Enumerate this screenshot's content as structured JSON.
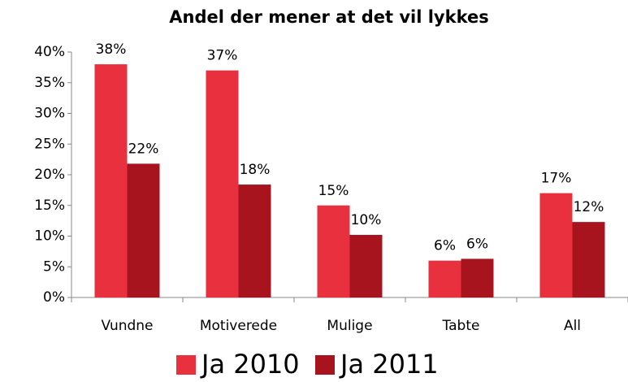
{
  "chart_data": {
    "type": "bar",
    "title": "Andel der mener at det vil lykkes",
    "categories": [
      "Vundne",
      "Motiverede",
      "Mulige",
      "Tabte",
      "All"
    ],
    "series": [
      {
        "name": "Ja 2010",
        "color": "#e8303e",
        "values": [
          38,
          37,
          15,
          6,
          17
        ],
        "value_labels": [
          "38%",
          "37%",
          "15%",
          "6%",
          "17%"
        ]
      },
      {
        "name": "Ja 2011",
        "color": "#a8141e",
        "values": [
          21.8,
          18.4,
          10.2,
          6.3,
          12.3
        ],
        "value_labels": [
          "22%",
          "18%",
          "10%",
          "6%",
          "12%"
        ]
      }
    ],
    "ylim": [
      0,
      40
    ],
    "yticks": [
      {
        "value": 0,
        "label": "0%"
      },
      {
        "value": 5,
        "label": "5%"
      },
      {
        "value": 10,
        "label": "10%"
      },
      {
        "value": 15,
        "label": "15%"
      },
      {
        "value": 20,
        "label": "20%"
      },
      {
        "value": 25,
        "label": "25%"
      },
      {
        "value": 30,
        "label": "30%"
      },
      {
        "value": 35,
        "label": "35%"
      },
      {
        "value": 40,
        "label": "40%"
      }
    ],
    "grid": false,
    "legend": "bottom"
  }
}
